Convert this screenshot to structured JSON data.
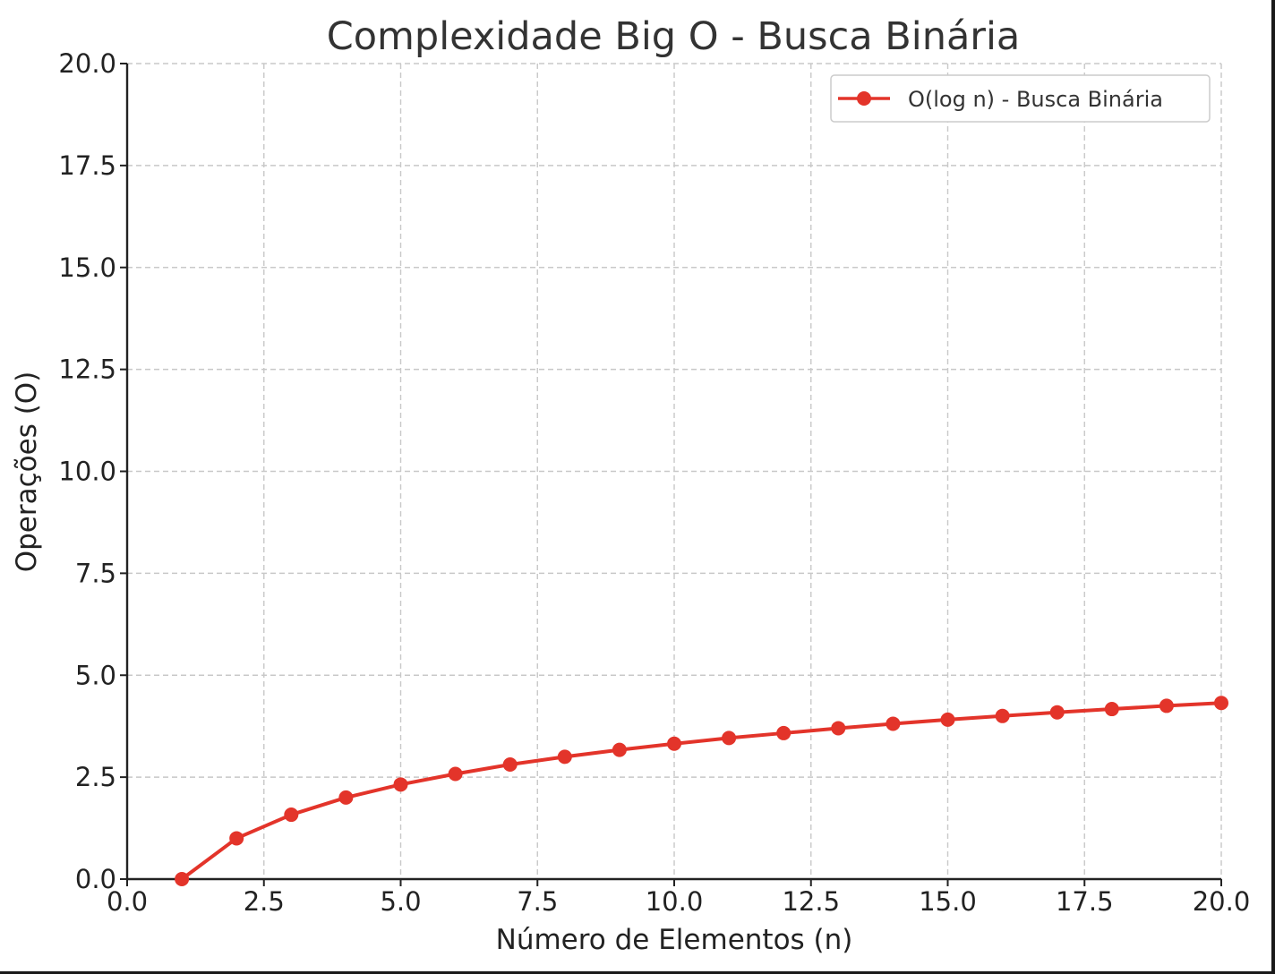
{
  "chart_data": {
    "type": "line",
    "title": "Complexidade Big O - Busca Binária",
    "xlabel": "Número de Elementos (n)",
    "ylabel": "Operações (O)",
    "xlim": [
      0,
      20
    ],
    "ylim": [
      0,
      20
    ],
    "x_ticks": [
      "0.0",
      "2.5",
      "5.0",
      "7.5",
      "10.0",
      "12.5",
      "15.0",
      "17.5",
      "20.0"
    ],
    "y_ticks": [
      "0.0",
      "2.5",
      "5.0",
      "7.5",
      "10.0",
      "12.5",
      "15.0",
      "17.5",
      "20.0"
    ],
    "grid": true,
    "legend_position": "top-right",
    "series": [
      {
        "name": "O(log n) - Busca Binária",
        "color": "#e3342a",
        "marker": "circle",
        "x": [
          1,
          2,
          3,
          4,
          5,
          6,
          7,
          8,
          9,
          10,
          11,
          12,
          13,
          14,
          15,
          16,
          17,
          18,
          19,
          20
        ],
        "values": [
          0.0,
          1.0,
          1.58,
          2.0,
          2.32,
          2.58,
          2.81,
          3.0,
          3.17,
          3.32,
          3.46,
          3.58,
          3.7,
          3.81,
          3.91,
          4.0,
          4.09,
          4.17,
          4.25,
          4.32
        ]
      }
    ]
  }
}
